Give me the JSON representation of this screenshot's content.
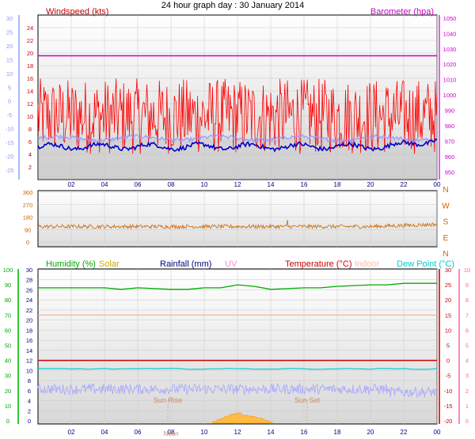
{
  "title": "24 hour graph day : 30 January 2014",
  "x_ticks": [
    "02",
    "04",
    "06",
    "08",
    "10",
    "12",
    "14",
    "16",
    "18",
    "20",
    "22",
    "00"
  ],
  "colors": {
    "wind": "#ff0000",
    "gust": "#ff0000",
    "wind_avg": "#0000cc",
    "wind_light": "#9999ff",
    "baro": "#cc00cc",
    "dir": "#cc6600",
    "humidity": "#00aa00",
    "solar": "#ccaa00",
    "rain": "#000080",
    "uv": "#ff66cc",
    "temp": "#cc0000",
    "indoor": "#ffaa88",
    "dewpoint": "#00cccc",
    "frame": "#000000",
    "grid": "#c8c8c8"
  },
  "chart_data": [
    {
      "type": "line",
      "name": "wind-panel",
      "title": "24 hour graph day : 30 January 2014",
      "left_label": "Windspeed (kts)",
      "right_label": "Barometer (hpa)",
      "left_axis_outer": [
        "-25",
        "-20",
        "-15",
        "-10",
        "-5",
        "0",
        "5",
        "10",
        "15",
        "20",
        "25",
        "30"
      ],
      "left_axis_inner": [
        "2",
        "4",
        "6",
        "8",
        "10",
        "12",
        "14",
        "16",
        "18",
        "20",
        "22",
        "24"
      ],
      "right_axis": [
        "950",
        "960",
        "970",
        "980",
        "990",
        "1000",
        "1010",
        "1020",
        "1030",
        "1040",
        "1050"
      ],
      "wind_range": [
        0,
        26
      ],
      "baro_range": [
        945,
        1052
      ],
      "barometer": 1025.5,
      "wind_gust_mean": 10,
      "wind_avg_mean": 5.2
    },
    {
      "type": "line",
      "name": "direction-panel",
      "left_axis": [
        "0",
        "90",
        "180",
        "270",
        "360"
      ],
      "right_axis": [
        "N",
        "E",
        "S",
        "W",
        "N"
      ],
      "dir_range": [
        0,
        360
      ],
      "direction_mean": 112
    },
    {
      "type": "line",
      "name": "multi-panel",
      "labels": {
        "humidity": "Humidity (%)",
        "solar": "Solar",
        "rain": "Rainfall (mm)",
        "uv": "UV",
        "temp": "Temperature (°C)",
        "indoor": "Indoor",
        "dewpoint": "Dew Point (°C)"
      },
      "left_outer_axis": [
        "0",
        "10",
        "20",
        "30",
        "40",
        "50",
        "60",
        "70",
        "80",
        "90",
        "100"
      ],
      "left_inner_axis": [
        "0",
        "2",
        "4",
        "6",
        "8",
        "10",
        "12",
        "14",
        "16",
        "18",
        "20",
        "22",
        "24",
        "26",
        "28",
        "30"
      ],
      "right_inner_axis": [
        "-20",
        "-15",
        "-10",
        "-5",
        "0",
        "5",
        "10",
        "15",
        "20",
        "25",
        "30"
      ],
      "right_outer_axis": [
        "0",
        "1",
        "2",
        "3",
        "4",
        "5",
        "6",
        "7",
        "8",
        "9",
        "10"
      ],
      "sun_rise": "Sun Rise",
      "sun_set": "Sun Set",
      "noon": "Noon",
      "humidity": [
        [
          0,
          88
        ],
        [
          2,
          88
        ],
        [
          4,
          88
        ],
        [
          5,
          87
        ],
        [
          6,
          88
        ],
        [
          8,
          87
        ],
        [
          9,
          87
        ],
        [
          10,
          88
        ],
        [
          11,
          88
        ],
        [
          12,
          90
        ],
        [
          13,
          89
        ],
        [
          14,
          87
        ],
        [
          16,
          88
        ],
        [
          17,
          88
        ],
        [
          18,
          89
        ],
        [
          20,
          90
        ],
        [
          21,
          90
        ],
        [
          22,
          91
        ],
        [
          24,
          91
        ]
      ],
      "indoor_temp": 15,
      "temperature": 0,
      "dewpoint": -2.8
    }
  ]
}
